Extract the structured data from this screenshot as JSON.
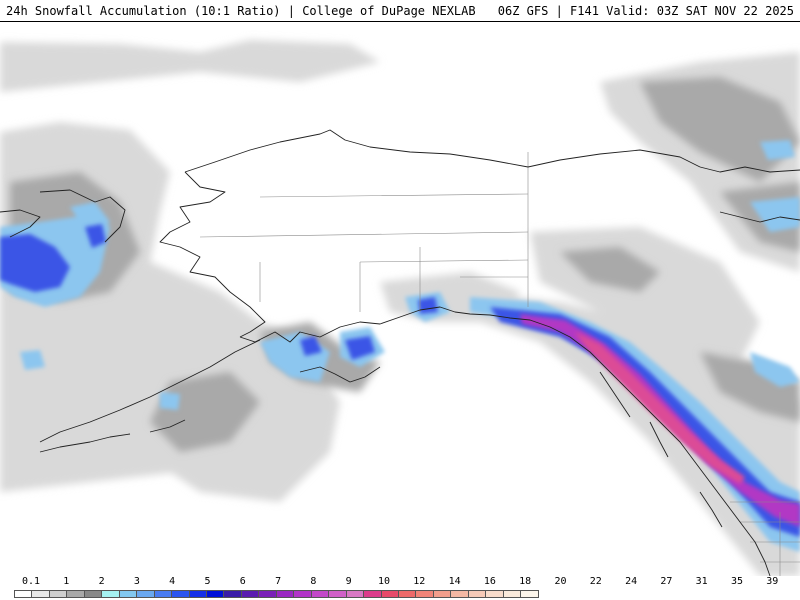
{
  "header": {
    "title": "24h Snowfall Accumulation (10:1 Ratio) | College of DuPage NEXLAB",
    "valid": "06Z GFS | F141 Valid: 03Z SAT NOV 22 2025"
  },
  "legend": {
    "labels": [
      "0.1",
      "1",
      "2",
      "3",
      "4",
      "5",
      "6",
      "7",
      "8",
      "9",
      "10",
      "12",
      "14",
      "16",
      "18",
      "20",
      "22",
      "24",
      "27",
      "31",
      "35",
      "39"
    ],
    "colors": [
      "#ffffff",
      "#e8e8e8",
      "#cfcfcf",
      "#a8a8a8",
      "#888888",
      "#a6f2f2",
      "#82c8f0",
      "#6aa8f0",
      "#4a7cf2",
      "#2a55f0",
      "#1530e8",
      "#0010d8",
      "#3a1ca8",
      "#5a1cb0",
      "#7a20b8",
      "#9a28c2",
      "#b234c8",
      "#c248c8",
      "#d060c8",
      "#d878c4",
      "#dc3c8c",
      "#e64a6a",
      "#ec6a6a",
      "#f08478",
      "#f29e8c",
      "#f4b8a4",
      "#f6cab8",
      "#f8dccc",
      "#faeadc",
      "#fdf6ec"
    ]
  }
}
